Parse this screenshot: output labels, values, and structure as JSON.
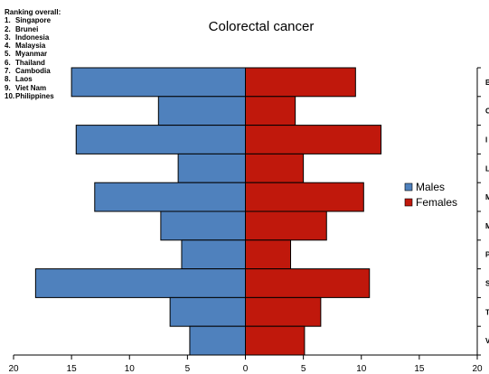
{
  "ranking": {
    "title": "Ranking overall:",
    "items": [
      "Singapore",
      "Brunei",
      "Indonesia",
      "Malaysia",
      "Myanmar",
      "Thailand",
      "Cambodia",
      "Laos",
      "Viet Nam",
      "Philippines"
    ]
  },
  "chart_data": {
    "type": "bar",
    "orientation": "horizontal",
    "layout": "population-pyramid",
    "title": "Colorectal cancer",
    "categories": [
      "B",
      "C",
      "I",
      "L",
      "M",
      "M",
      "P",
      "S",
      "T",
      "V"
    ],
    "series": [
      {
        "name": "Males",
        "color": "#4f81bd",
        "side": "left",
        "values": [
          15.0,
          7.5,
          14.6,
          5.8,
          13.0,
          7.3,
          5.5,
          18.1,
          6.5,
          4.8
        ]
      },
      {
        "name": "Females",
        "color": "#c0180c",
        "side": "right",
        "values": [
          9.5,
          4.3,
          11.7,
          5.0,
          10.2,
          7.0,
          3.9,
          10.7,
          6.5,
          5.1
        ]
      }
    ],
    "xlim": [
      -20,
      20
    ],
    "x_ticks": [
      {
        "value": -20,
        "label": "20"
      },
      {
        "value": -15,
        "label": "15"
      },
      {
        "value": -10,
        "label": "10"
      },
      {
        "value": -5,
        "label": "5"
      },
      {
        "value": 0,
        "label": "0"
      },
      {
        "value": 5,
        "label": "5"
      },
      {
        "value": 10,
        "label": "10"
      },
      {
        "value": 15,
        "label": "15"
      },
      {
        "value": 20,
        "label": "20"
      }
    ],
    "legend_position": "right",
    "grid": false
  }
}
